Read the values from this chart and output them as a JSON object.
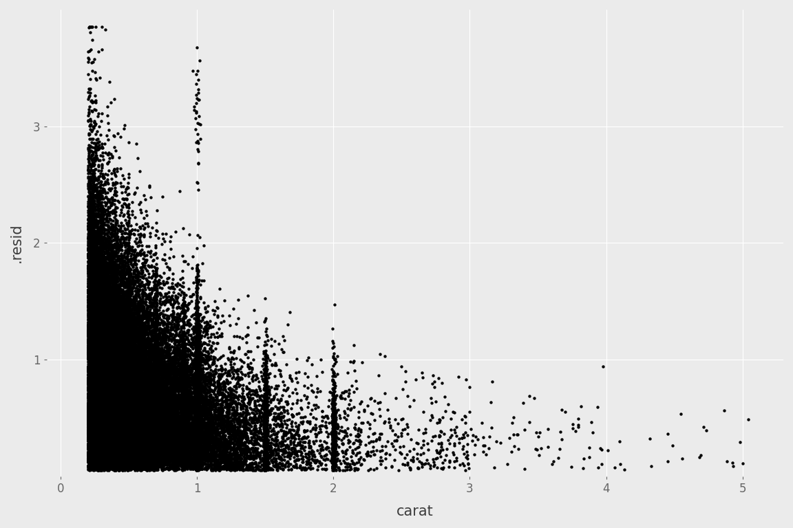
{
  "title": "",
  "xlabel": "carat",
  "ylabel": ".resid",
  "xlim": [
    -0.1,
    5.3
  ],
  "ylim": [
    0.0,
    4.0
  ],
  "xticks": [
    0,
    1,
    2,
    3,
    4,
    5
  ],
  "yticks": [
    1,
    2,
    3
  ],
  "bg_color": "#EBEBEB",
  "point_color": "#000000",
  "point_size": 10,
  "point_alpha": 1.0,
  "grid_color": "#FFFFFF",
  "xlabel_fontsize": 15,
  "ylabel_fontsize": 15,
  "tick_fontsize": 12
}
